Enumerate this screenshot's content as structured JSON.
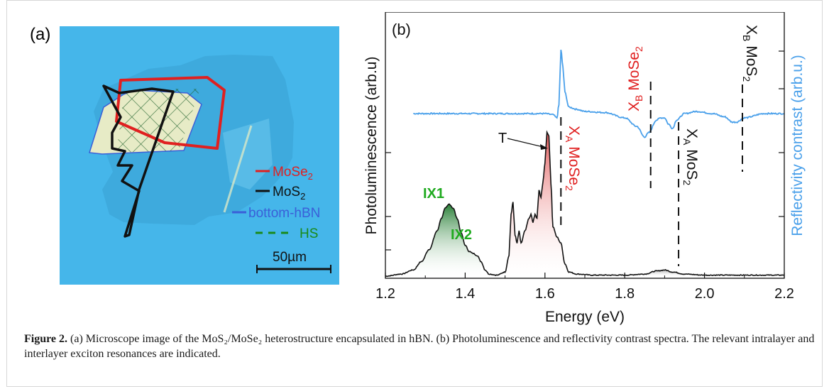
{
  "figure": {
    "panel_a_label": "(a)",
    "panel_b_label": "(b)",
    "legend": {
      "mose2": "MoSe",
      "mos2": "MoS",
      "hbn": "bottom-hBN",
      "hs": "HS",
      "sub2": "2"
    },
    "scale_bar": "50µm",
    "caption_bold": "Figure 2.",
    "caption_text": " (a) Microscope image of the MoS₂/MoSe₂ heterostructure encapsulated in hBN. (b) Photoluminescence and reflectivity contrast spectra. The relevant intralayer and interlayer exciton resonances are indicated."
  },
  "colors": {
    "substrate": "#3fb3e6",
    "mose2": "#e02020",
    "mos2": "#111111",
    "hbn": "#3a5fd8",
    "hs": "#1a8a1a",
    "pl": "#111111",
    "reflectivity": "#4aa0ea",
    "ix_label": "#1faa1f"
  },
  "chart_data": {
    "type": "line",
    "xlabel": "Energy (eV)",
    "ylabel_left": "Photoluminescence (arb.u)",
    "ylabel_right": "Reflectivity contrast (arb.u.)",
    "xlim": [
      1.2,
      2.2
    ],
    "xticks": [
      "1.2",
      "1.4",
      "1.6",
      "1.8",
      "2.0",
      "2.2"
    ],
    "xtick_values": [
      1.2,
      1.4,
      1.6,
      1.8,
      2.0,
      2.2
    ],
    "series": [
      {
        "name": "Photoluminescence",
        "x": [
          1.2,
          1.24,
          1.27,
          1.29,
          1.31,
          1.33,
          1.34,
          1.35,
          1.36,
          1.37,
          1.38,
          1.39,
          1.4,
          1.41,
          1.42,
          1.43,
          1.44,
          1.45,
          1.46,
          1.48,
          1.5,
          1.51,
          1.515,
          1.52,
          1.525,
          1.53,
          1.535,
          1.54,
          1.55,
          1.56,
          1.565,
          1.57,
          1.575,
          1.58,
          1.585,
          1.59,
          1.595,
          1.6,
          1.605,
          1.61,
          1.615,
          1.62,
          1.63,
          1.64,
          1.65,
          1.66,
          1.68,
          1.72,
          1.8,
          1.85,
          1.88,
          1.9,
          1.92,
          1.95,
          2.0,
          2.1,
          2.2
        ],
        "y": [
          0.0,
          0.01,
          0.03,
          0.07,
          0.13,
          0.22,
          0.28,
          0.33,
          0.35,
          0.33,
          0.28,
          0.21,
          0.15,
          0.12,
          0.11,
          0.1,
          0.07,
          0.03,
          0.01,
          0.005,
          0.02,
          0.1,
          0.3,
          0.36,
          0.2,
          0.16,
          0.22,
          0.16,
          0.22,
          0.28,
          0.3,
          0.26,
          0.3,
          0.28,
          0.42,
          0.38,
          0.46,
          0.55,
          0.7,
          0.68,
          0.45,
          0.24,
          0.19,
          0.16,
          0.06,
          0.02,
          0.01,
          0.005,
          0.005,
          0.01,
          0.025,
          0.03,
          0.02,
          0.01,
          0.005,
          0.005,
          0.005
        ]
      },
      {
        "name": "Reflectivity contrast",
        "x": [
          1.27,
          1.3,
          1.35,
          1.4,
          1.45,
          1.5,
          1.55,
          1.6,
          1.62,
          1.63,
          1.635,
          1.64,
          1.645,
          1.65,
          1.66,
          1.68,
          1.7,
          1.75,
          1.8,
          1.83,
          1.85,
          1.86,
          1.88,
          1.89,
          1.9,
          1.91,
          1.92,
          1.93,
          1.95,
          1.98,
          2.02,
          2.05,
          2.07,
          2.08,
          2.1,
          2.15,
          2.2
        ],
        "y": [
          0.0,
          0.0,
          0.0,
          0.0,
          0.0,
          0.0,
          0.0,
          0.0,
          -0.005,
          -0.02,
          0.04,
          0.3,
          0.22,
          0.1,
          0.03,
          0.02,
          0.01,
          0.005,
          -0.02,
          -0.06,
          -0.11,
          -0.09,
          -0.03,
          -0.02,
          -0.02,
          -0.05,
          -0.07,
          -0.03,
          0.0,
          0.01,
          0.0,
          -0.015,
          -0.04,
          -0.04,
          -0.02,
          0.0,
          0.0
        ]
      }
    ],
    "annotations": {
      "ix1": "IX1",
      "ix2": "IX2",
      "trion": "T",
      "xa_mose2": "X",
      "xa_mose2_sub": "A",
      "xa_mose2_material": "MoSe",
      "xb_mose2": "X",
      "xb_mose2_sub": "B",
      "xb_mose2_material": "MoSe",
      "xa_mos2": "X",
      "xa_mos2_sub": "A",
      "xa_mos2_material": "MoS",
      "xb_mos2": "X",
      "xb_mos2_sub": "B",
      "xb_mos2_material": "MoS",
      "sub2": "2"
    },
    "markers": {
      "xa_mose2": 1.64,
      "xb_mose2": 1.865,
      "xa_mos2": 1.935,
      "xb_mos2": 2.095
    }
  }
}
